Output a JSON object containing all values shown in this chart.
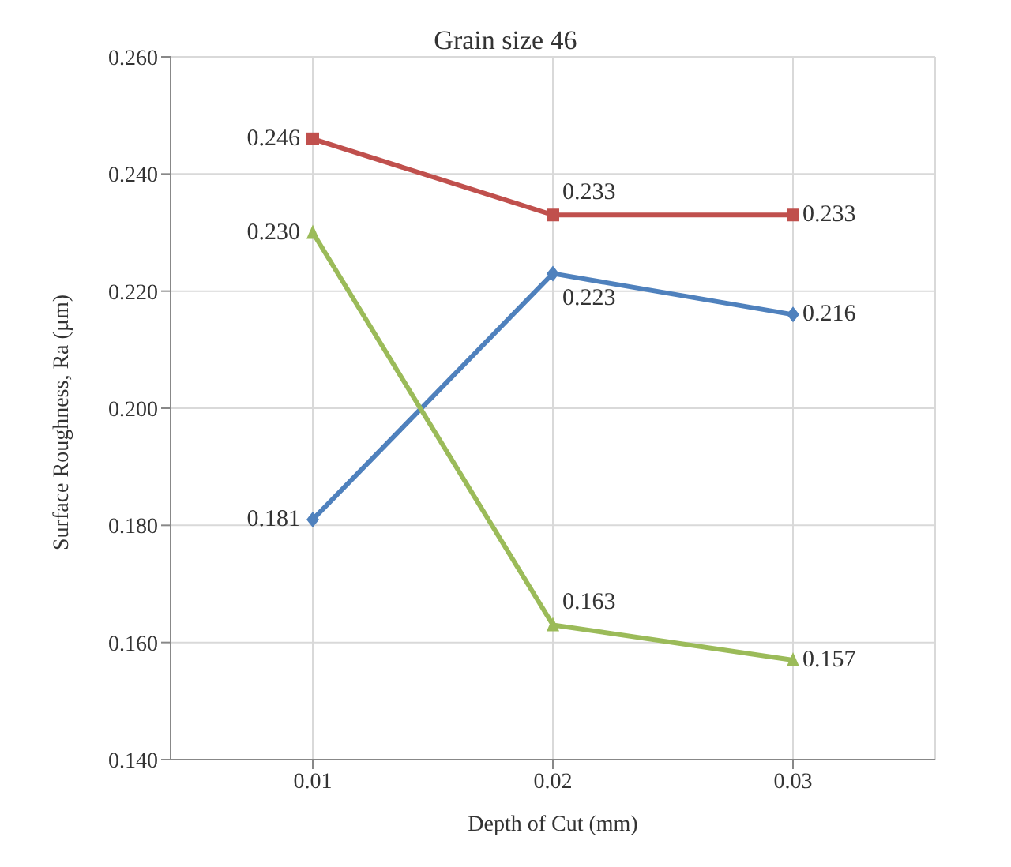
{
  "chart_data": {
    "type": "line",
    "title": "Grain size 46",
    "xlabel": "Depth of Cut (mm)",
    "ylabel": "Surface Roughness, Ra (µm)",
    "categories": [
      "0.01",
      "0.02",
      "0.03"
    ],
    "series": [
      {
        "color": "#c0504d",
        "marker": "square",
        "values": [
          0.246,
          0.233,
          0.233
        ],
        "value_labels": [
          "0.246",
          "0.233",
          "0.233"
        ]
      },
      {
        "color": "#4f81bd",
        "marker": "diamond",
        "values": [
          0.181,
          0.223,
          0.216
        ],
        "value_labels": [
          "0.181",
          "0.223",
          "0.216"
        ]
      },
      {
        "color": "#9bbb59",
        "marker": "triangle",
        "values": [
          0.23,
          0.163,
          0.157
        ],
        "value_labels": [
          "0.230",
          "0.163",
          "0.157"
        ]
      }
    ],
    "ylim": [
      0.14,
      0.26
    ],
    "yticks": [
      {
        "value": 0.14,
        "label": "0.140"
      },
      {
        "value": 0.16,
        "label": "0.160"
      },
      {
        "value": 0.18,
        "label": "0.180"
      },
      {
        "value": 0.2,
        "label": "0.200"
      },
      {
        "value": 0.22,
        "label": "0.220"
      },
      {
        "value": 0.24,
        "label": "0.240"
      },
      {
        "value": 0.26,
        "label": "0.260"
      }
    ],
    "grid": true
  }
}
